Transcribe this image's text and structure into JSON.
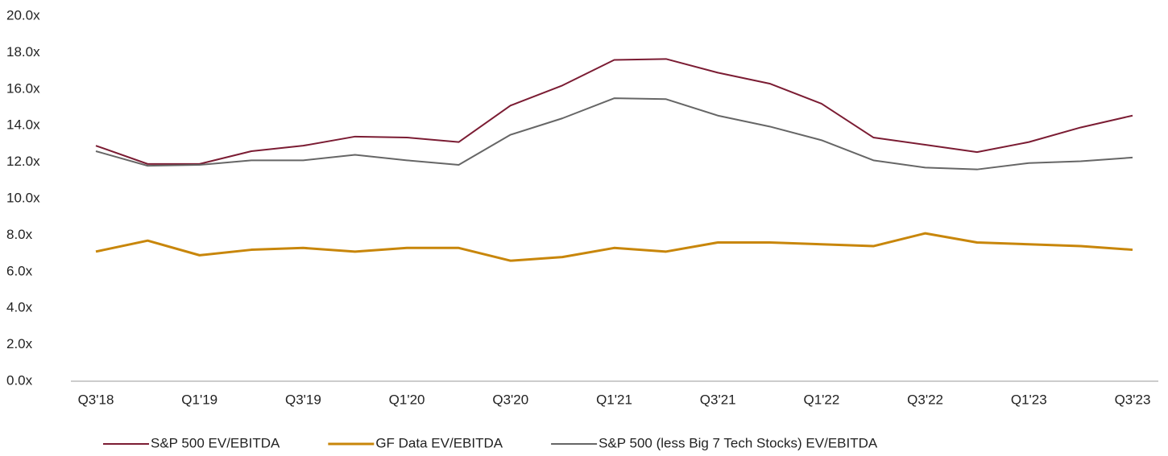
{
  "chart_data": {
    "type": "line",
    "categories": [
      "Q3'18",
      null,
      "Q1'19",
      null,
      "Q3'19",
      null,
      "Q1'20",
      null,
      "Q3'20",
      null,
      "Q1'21",
      null,
      "Q3'21",
      null,
      "Q1'22",
      null,
      "Q3'22",
      null,
      "Q1'23",
      null,
      "Q3'23"
    ],
    "series": [
      {
        "name": "S&P 500 EV/EBITDA",
        "color": "#7b1c33",
        "values": [
          12.9,
          11.9,
          11.9,
          12.6,
          12.9,
          13.4,
          13.35,
          13.1,
          15.1,
          16.2,
          17.6,
          17.65,
          16.9,
          16.3,
          15.2,
          13.35,
          12.95,
          12.55,
          13.1,
          13.9,
          14.55
        ]
      },
      {
        "name": "GF Data EV/EBITDA",
        "color": "#c8860a",
        "values": [
          7.1,
          7.7,
          6.9,
          7.2,
          7.3,
          7.1,
          7.3,
          7.3,
          6.6,
          6.8,
          7.3,
          7.1,
          7.6,
          7.6,
          7.5,
          7.4,
          8.1,
          7.6,
          7.5,
          7.4,
          7.2
        ]
      },
      {
        "name": "S&P 500 (less Big 7 Tech Stocks) EV/EBITDA",
        "color": "#666666",
        "values": [
          12.6,
          11.8,
          11.85,
          12.1,
          12.1,
          12.4,
          12.1,
          11.85,
          13.5,
          14.4,
          15.5,
          15.45,
          14.55,
          13.95,
          13.2,
          12.1,
          11.7,
          11.6,
          11.95,
          12.05,
          12.25
        ]
      }
    ],
    "ylim": [
      0,
      20
    ],
    "yticks": [
      {
        "value": 0,
        "label": "0.0x"
      },
      {
        "value": 2,
        "label": "2.0x"
      },
      {
        "value": 4,
        "label": "4.0x"
      },
      {
        "value": 6,
        "label": "6.0x"
      },
      {
        "value": 8,
        "label": "8.0x"
      },
      {
        "value": 10,
        "label": "10.0x"
      },
      {
        "value": 12,
        "label": "12.0x"
      },
      {
        "value": 14,
        "label": "14.0x"
      },
      {
        "value": 16,
        "label": "16.0x"
      },
      {
        "value": 18,
        "label": "18.0x"
      },
      {
        "value": 20,
        "label": "20.0x"
      }
    ],
    "legend": "bottom"
  }
}
